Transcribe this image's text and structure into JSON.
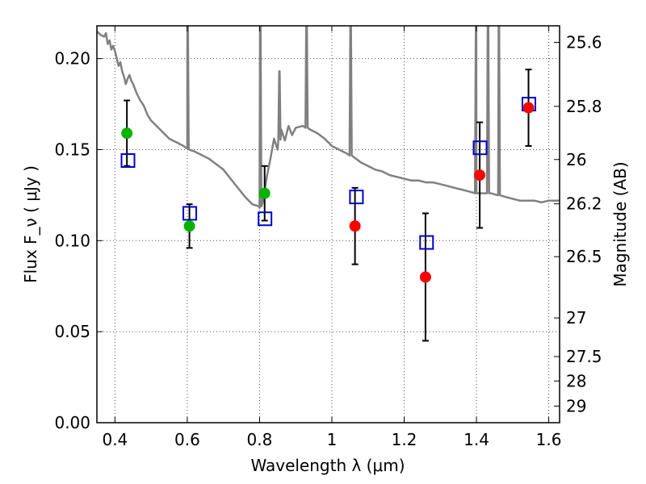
{
  "chart_data": {
    "type": "scatter",
    "xlabel": "Wavelength λ (μm)",
    "ylabel": "Flux F_ν ( μJy )",
    "ylabel_right": "Magnitude (AB)",
    "xlim": [
      0.35,
      1.63
    ],
    "ylim": [
      0.0,
      0.218
    ],
    "grid": true,
    "x_ticks": [
      0.4,
      0.6,
      0.8,
      1.0,
      1.2,
      1.4,
      1.6
    ],
    "x_tick_labels": [
      "0.4",
      "0.6",
      "0.8",
      "1",
      "1.2",
      "1.4",
      "1.6"
    ],
    "y_ticks": [
      0.0,
      0.05,
      0.1,
      0.15,
      0.2
    ],
    "y_tick_labels": [
      "0.00",
      "0.05",
      "0.10",
      "0.15",
      "0.20"
    ],
    "mag_ticks": [
      25.6,
      25.8,
      26,
      26.2,
      26.5,
      27,
      27.5,
      28,
      29
    ],
    "mag_tick_labels": [
      "25.6",
      "25.8",
      "26",
      "26.2",
      "26.5",
      "27",
      "27.5",
      "28",
      "29"
    ],
    "mag_zero_point": 23.9,
    "observed_green": [
      {
        "x": 0.433,
        "y": 0.159,
        "err": 0.018
      },
      {
        "x": 0.606,
        "y": 0.108,
        "err": 0.012
      },
      {
        "x": 0.814,
        "y": 0.126,
        "err": 0.015
      }
    ],
    "observed_red": [
      {
        "x": 1.064,
        "y": 0.108,
        "err": 0.021
      },
      {
        "x": 1.259,
        "y": 0.08,
        "err": 0.035
      },
      {
        "x": 1.409,
        "y": 0.136,
        "err": 0.029
      },
      {
        "x": 1.544,
        "y": 0.173,
        "err": 0.021
      }
    ],
    "model_squares": [
      {
        "x": 0.436,
        "y": 0.144
      },
      {
        "x": 0.607,
        "y": 0.115
      },
      {
        "x": 0.815,
        "y": 0.112
      },
      {
        "x": 1.068,
        "y": 0.124
      },
      {
        "x": 1.262,
        "y": 0.099
      },
      {
        "x": 1.41,
        "y": 0.151
      },
      {
        "x": 1.545,
        "y": 0.175
      }
    ],
    "spectrum": [
      [
        0.35,
        0.215
      ],
      [
        0.36,
        0.213
      ],
      [
        0.37,
        0.212
      ],
      [
        0.375,
        0.214
      ],
      [
        0.38,
        0.208
      ],
      [
        0.385,
        0.21
      ],
      [
        0.39,
        0.205
      ],
      [
        0.395,
        0.207
      ],
      [
        0.4,
        0.204
      ],
      [
        0.405,
        0.2
      ],
      [
        0.41,
        0.196
      ],
      [
        0.415,
        0.198
      ],
      [
        0.42,
        0.193
      ],
      [
        0.425,
        0.19
      ],
      [
        0.43,
        0.186
      ],
      [
        0.435,
        0.189
      ],
      [
        0.44,
        0.191
      ],
      [
        0.445,
        0.188
      ],
      [
        0.45,
        0.186
      ],
      [
        0.46,
        0.181
      ],
      [
        0.47,
        0.177
      ],
      [
        0.48,
        0.174
      ],
      [
        0.49,
        0.169
      ],
      [
        0.5,
        0.166
      ],
      [
        0.51,
        0.164
      ],
      [
        0.52,
        0.162
      ],
      [
        0.53,
        0.16
      ],
      [
        0.54,
        0.158
      ],
      [
        0.55,
        0.156
      ],
      [
        0.56,
        0.155
      ],
      [
        0.57,
        0.154
      ],
      [
        0.58,
        0.153
      ],
      [
        0.59,
        0.152
      ],
      [
        0.6,
        0.151
      ],
      [
        0.605,
        0.15
      ],
      [
        0.62,
        0.149
      ],
      [
        0.64,
        0.147
      ],
      [
        0.66,
        0.145
      ],
      [
        0.68,
        0.142
      ],
      [
        0.7,
        0.139
      ],
      [
        0.72,
        0.134
      ],
      [
        0.74,
        0.129
      ],
      [
        0.76,
        0.124
      ],
      [
        0.78,
        0.12
      ],
      [
        0.8,
        0.118
      ],
      [
        0.81,
        0.122
      ],
      [
        0.82,
        0.135
      ],
      [
        0.83,
        0.145
      ],
      [
        0.84,
        0.156
      ],
      [
        0.85,
        0.15
      ],
      [
        0.86,
        0.161
      ],
      [
        0.87,
        0.155
      ],
      [
        0.88,
        0.163
      ],
      [
        0.89,
        0.158
      ],
      [
        0.9,
        0.162
      ],
      [
        0.92,
        0.163
      ],
      [
        0.94,
        0.161
      ],
      [
        0.96,
        0.159
      ],
      [
        0.98,
        0.156
      ],
      [
        1.0,
        0.152
      ],
      [
        1.02,
        0.15
      ],
      [
        1.04,
        0.148
      ],
      [
        1.06,
        0.146
      ],
      [
        1.08,
        0.143
      ],
      [
        1.1,
        0.141
      ],
      [
        1.12,
        0.139
      ],
      [
        1.14,
        0.138
      ],
      [
        1.16,
        0.136
      ],
      [
        1.18,
        0.135
      ],
      [
        1.2,
        0.134
      ],
      [
        1.22,
        0.133
      ],
      [
        1.24,
        0.133
      ],
      [
        1.26,
        0.132
      ],
      [
        1.28,
        0.132
      ],
      [
        1.3,
        0.131
      ],
      [
        1.32,
        0.13
      ],
      [
        1.34,
        0.129
      ],
      [
        1.36,
        0.128
      ],
      [
        1.38,
        0.127
      ],
      [
        1.4,
        0.126
      ],
      [
        1.42,
        0.126
      ],
      [
        1.44,
        0.126
      ],
      [
        1.46,
        0.125
      ],
      [
        1.48,
        0.124
      ],
      [
        1.5,
        0.123
      ],
      [
        1.52,
        0.122
      ],
      [
        1.54,
        0.122
      ],
      [
        1.56,
        0.122
      ],
      [
        1.58,
        0.121
      ],
      [
        1.6,
        0.122
      ],
      [
        1.63,
        0.122
      ]
    ],
    "emission_lines": [
      {
        "x": 0.601,
        "peak": 0.218
      },
      {
        "x": 0.802,
        "peak": 0.218
      },
      {
        "x": 0.855,
        "peak": 0.183
      },
      {
        "x": 0.93,
        "peak": 0.218
      },
      {
        "x": 1.052,
        "peak": 0.218
      },
      {
        "x": 1.399,
        "peak": 0.218
      },
      {
        "x": 1.432,
        "peak": 0.218
      },
      {
        "x": 1.462,
        "peak": 0.218
      }
    ],
    "colors": {
      "spectrum": "#808080",
      "green": "#00b400",
      "red": "#ff0000",
      "square": "#0000cc",
      "errorbar": "#000000"
    }
  }
}
